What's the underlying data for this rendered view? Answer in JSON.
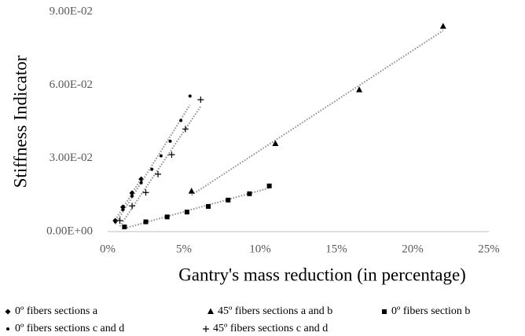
{
  "chart_data": {
    "type": "scatter",
    "xlabel": "Gantry's mass reduction (in percentage)",
    "ylabel": "Stiffness Indicator",
    "xlim": [
      0,
      25
    ],
    "xticks": [
      {
        "value": 0,
        "label": "0%"
      },
      {
        "value": 5,
        "label": "5%"
      },
      {
        "value": 10,
        "label": "10%"
      },
      {
        "value": 15,
        "label": "15%"
      },
      {
        "value": 20,
        "label": "20%"
      },
      {
        "value": 25,
        "label": "25%"
      }
    ],
    "ylim": [
      0,
      0.09
    ],
    "yticks": [
      {
        "value": 0,
        "label": "0.00E+00"
      },
      {
        "value": 0.03,
        "label": "3.00E-02"
      },
      {
        "value": 0.06,
        "label": "6.00E-02"
      },
      {
        "value": 0.09,
        "label": "9.00E-02"
      }
    ],
    "trendline": true,
    "trendline_color": "#8c8c8c",
    "series": [
      {
        "name": "0º fibers sections a",
        "marker": "diamond",
        "color": "#000000",
        "x": [
          0.5,
          1.0,
          1.6,
          2.2
        ],
        "values": [
          0.0045,
          0.01,
          0.0158,
          0.0215
        ]
      },
      {
        "name": "45º fibers sections a and b",
        "marker": "triangle",
        "color": "#000000",
        "x": [
          5.5,
          11.0,
          16.5,
          22.0
        ],
        "values": [
          0.0165,
          0.036,
          0.058,
          0.084
        ]
      },
      {
        "name": "0º fibers section b",
        "marker": "square",
        "color": "#000000",
        "x": [
          1.1,
          2.5,
          3.9,
          5.2,
          6.6,
          7.9,
          9.3,
          10.6
        ],
        "values": [
          0.0019,
          0.004,
          0.006,
          0.008,
          0.0103,
          0.0129,
          0.0155,
          0.0187
        ]
      },
      {
        "name": "0º fibers sections c and d",
        "marker": "circle",
        "color": "#000000",
        "x": [
          0.5,
          1.0,
          1.6,
          2.2,
          2.9,
          3.5,
          4.1,
          4.8,
          5.4
        ],
        "values": [
          0.004,
          0.009,
          0.0145,
          0.02,
          0.0255,
          0.031,
          0.037,
          0.0455,
          0.0555
        ]
      },
      {
        "name": "45º fibers sections c and d",
        "marker": "plus",
        "color": "#000000",
        "x": [
          0.8,
          1.6,
          2.5,
          3.3,
          4.2,
          5.1,
          6.1
        ],
        "values": [
          0.0045,
          0.0105,
          0.016,
          0.0235,
          0.0315,
          0.042,
          0.054
        ]
      }
    ]
  }
}
